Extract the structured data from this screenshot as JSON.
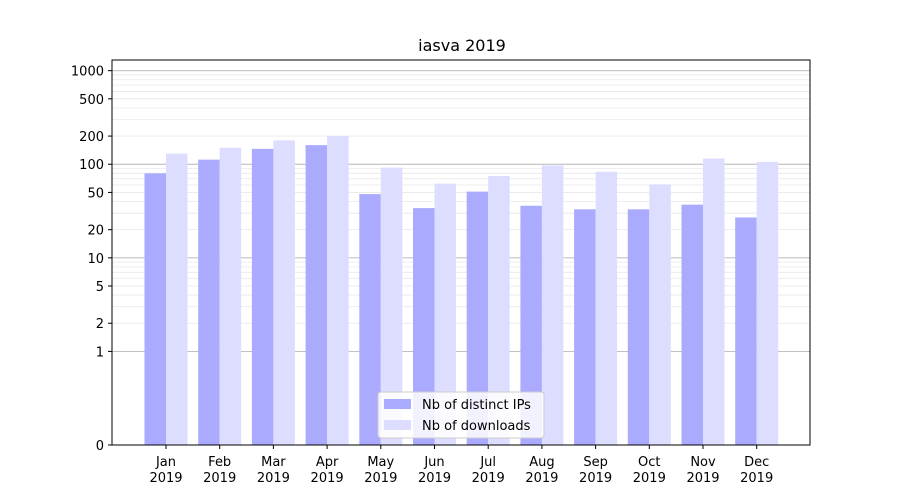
{
  "chart_data": {
    "type": "bar",
    "title": "iasva 2019",
    "xlabel": "",
    "ylabel": "",
    "yscale": "symlog",
    "ylim": [
      0,
      1300
    ],
    "yticks": [
      {
        "value": 0,
        "label": "0"
      },
      {
        "value": 1,
        "label": "1"
      },
      {
        "value": 2,
        "label": "2"
      },
      {
        "value": 5,
        "label": "5"
      },
      {
        "value": 10,
        "label": "10"
      },
      {
        "value": 20,
        "label": "20"
      },
      {
        "value": 50,
        "label": "50"
      },
      {
        "value": 100,
        "label": "100"
      },
      {
        "value": 200,
        "label": "200"
      },
      {
        "value": 500,
        "label": "500"
      },
      {
        "value": 1000,
        "label": "1000"
      }
    ],
    "grid": true,
    "legend_position": "lower-center",
    "categories": [
      {
        "month": "Jan",
        "year": "2019"
      },
      {
        "month": "Feb",
        "year": "2019"
      },
      {
        "month": "Mar",
        "year": "2019"
      },
      {
        "month": "Apr",
        "year": "2019"
      },
      {
        "month": "May",
        "year": "2019"
      },
      {
        "month": "Jun",
        "year": "2019"
      },
      {
        "month": "Jul",
        "year": "2019"
      },
      {
        "month": "Aug",
        "year": "2019"
      },
      {
        "month": "Sep",
        "year": "2019"
      },
      {
        "month": "Oct",
        "year": "2019"
      },
      {
        "month": "Nov",
        "year": "2019"
      },
      {
        "month": "Dec",
        "year": "2019"
      }
    ],
    "series": [
      {
        "name": "Nb of distinct IPs",
        "color": "#aaaaff",
        "values": [
          80,
          112,
          146,
          160,
          48,
          34,
          51,
          36,
          33,
          33,
          37,
          27
        ]
      },
      {
        "name": "Nb of downloads",
        "color": "#ddddff",
        "values": [
          130,
          150,
          180,
          200,
          92,
          62,
          75,
          97,
          83,
          61,
          115,
          106
        ]
      }
    ]
  }
}
